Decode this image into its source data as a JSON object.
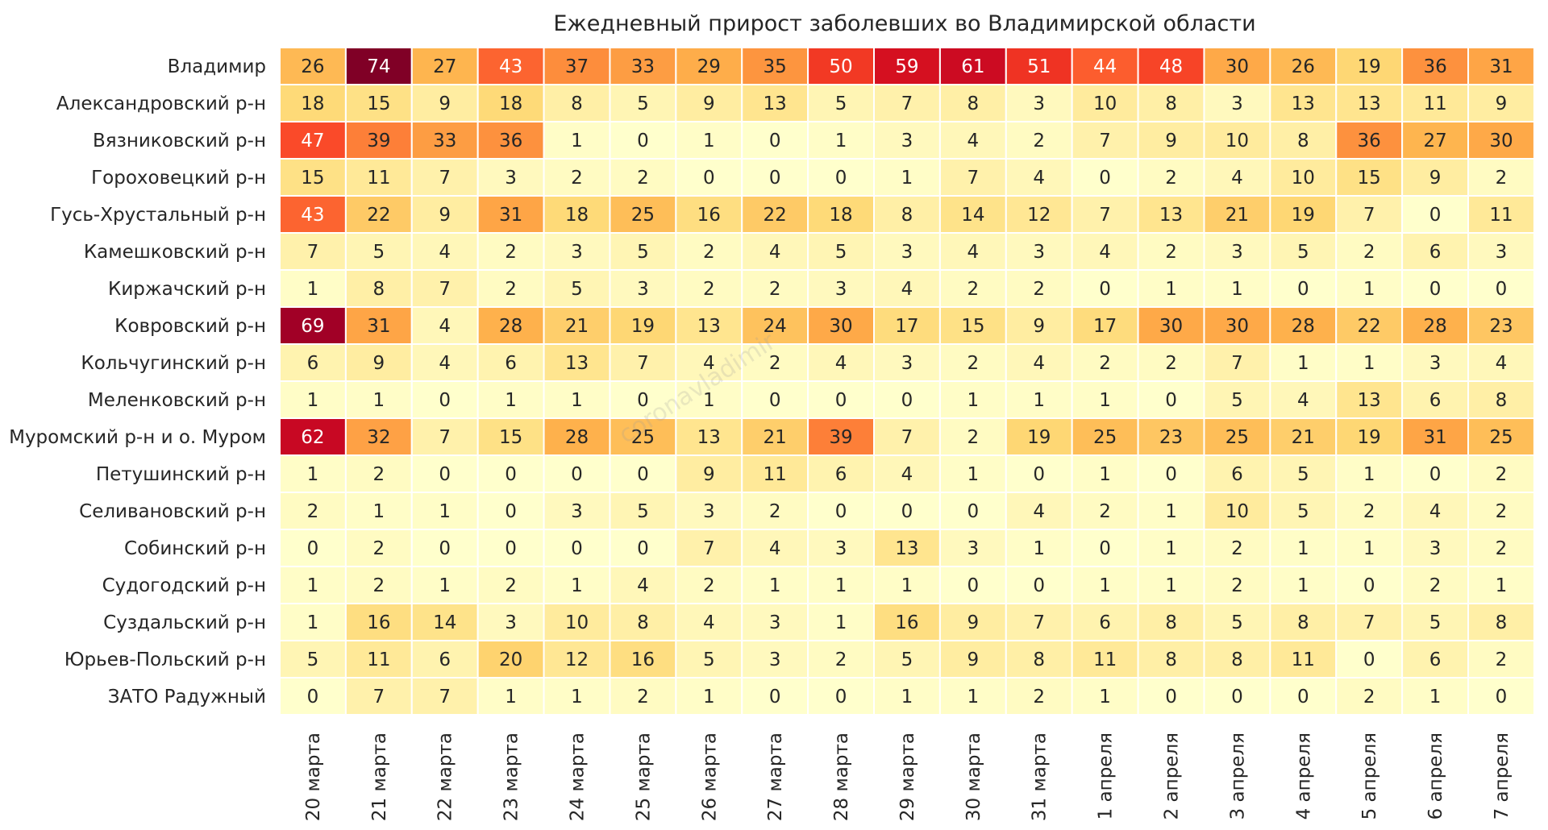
{
  "chart_data": {
    "type": "heatmap",
    "title": "Ежедневный прирост заболевших во Владимирской области",
    "xlabel": "",
    "ylabel": "",
    "watermark": "coronavladimir",
    "colormap": "YlOrRd",
    "value_range": [
      0,
      74
    ],
    "rows": [
      "Владимир",
      "Александровский р-н",
      "Вязниковский р-н",
      "Гороховецкий р-н",
      "Гусь-Хрустальный р-н",
      "Камешковский р-н",
      "Киржачский р-н",
      "Ковровский р-н",
      "Кольчугинский р-н",
      "Меленковский р-н",
      "Муромский р-н и о. Муром",
      "Петушинский р-н",
      "Селивановский р-н",
      "Собинский р-н",
      "Судогодский р-н",
      "Суздальский р-н",
      "Юрьев-Польский р-н",
      "ЗАТО Радужный"
    ],
    "columns": [
      "20 марта",
      "21 марта",
      "22 марта",
      "23 марта",
      "24 марта",
      "25 марта",
      "26 марта",
      "27 марта",
      "28 марта",
      "29 марта",
      "30 марта",
      "31 марта",
      "1 апреля",
      "2 апреля",
      "3 апреля",
      "4 апреля",
      "5 апреля",
      "6 апреля",
      "7 апреля"
    ],
    "values": [
      [
        26,
        74,
        27,
        43,
        37,
        33,
        29,
        35,
        50,
        59,
        61,
        51,
        44,
        48,
        30,
        26,
        19,
        36,
        31
      ],
      [
        18,
        15,
        9,
        18,
        8,
        5,
        9,
        13,
        5,
        7,
        8,
        3,
        10,
        8,
        3,
        13,
        13,
        11,
        9
      ],
      [
        47,
        39,
        33,
        36,
        1,
        0,
        1,
        0,
        1,
        3,
        4,
        2,
        7,
        9,
        10,
        8,
        36,
        27,
        30
      ],
      [
        15,
        11,
        7,
        3,
        2,
        2,
        0,
        0,
        0,
        1,
        7,
        4,
        0,
        2,
        4,
        10,
        15,
        9,
        2
      ],
      [
        43,
        22,
        9,
        31,
        18,
        25,
        16,
        22,
        18,
        8,
        14,
        12,
        7,
        13,
        21,
        19,
        7,
        0,
        11
      ],
      [
        7,
        5,
        4,
        2,
        3,
        5,
        2,
        4,
        5,
        3,
        4,
        3,
        4,
        2,
        3,
        5,
        2,
        6,
        3
      ],
      [
        1,
        8,
        7,
        2,
        5,
        3,
        2,
        2,
        3,
        4,
        2,
        2,
        0,
        1,
        1,
        0,
        1,
        0,
        0
      ],
      [
        69,
        31,
        4,
        28,
        21,
        19,
        13,
        24,
        30,
        17,
        15,
        9,
        17,
        30,
        30,
        28,
        22,
        28,
        23
      ],
      [
        6,
        9,
        4,
        6,
        13,
        7,
        4,
        2,
        4,
        3,
        2,
        4,
        2,
        2,
        7,
        1,
        1,
        3,
        4
      ],
      [
        1,
        1,
        0,
        1,
        1,
        0,
        1,
        0,
        0,
        0,
        1,
        1,
        1,
        0,
        5,
        4,
        13,
        6,
        8
      ],
      [
        62,
        32,
        7,
        15,
        28,
        25,
        13,
        21,
        39,
        7,
        2,
        19,
        25,
        23,
        25,
        21,
        19,
        31,
        25
      ],
      [
        1,
        2,
        0,
        0,
        0,
        0,
        9,
        11,
        6,
        4,
        1,
        0,
        1,
        0,
        6,
        5,
        1,
        0,
        2
      ],
      [
        2,
        1,
        1,
        0,
        3,
        5,
        3,
        2,
        0,
        0,
        0,
        4,
        2,
        1,
        10,
        5,
        2,
        4,
        2
      ],
      [
        0,
        2,
        0,
        0,
        0,
        0,
        7,
        4,
        3,
        13,
        3,
        1,
        0,
        1,
        2,
        1,
        1,
        3,
        2
      ],
      [
        1,
        2,
        1,
        2,
        1,
        4,
        2,
        1,
        1,
        1,
        0,
        0,
        1,
        1,
        2,
        1,
        0,
        2,
        1
      ],
      [
        1,
        16,
        14,
        3,
        10,
        8,
        4,
        3,
        1,
        16,
        9,
        7,
        6,
        8,
        5,
        8,
        7,
        5,
        8
      ],
      [
        5,
        11,
        6,
        20,
        12,
        16,
        5,
        3,
        2,
        5,
        9,
        8,
        11,
        8,
        8,
        11,
        0,
        6,
        2
      ],
      [
        0,
        7,
        7,
        1,
        1,
        2,
        1,
        0,
        0,
        1,
        1,
        2,
        1,
        0,
        0,
        0,
        2,
        1,
        0
      ]
    ]
  }
}
